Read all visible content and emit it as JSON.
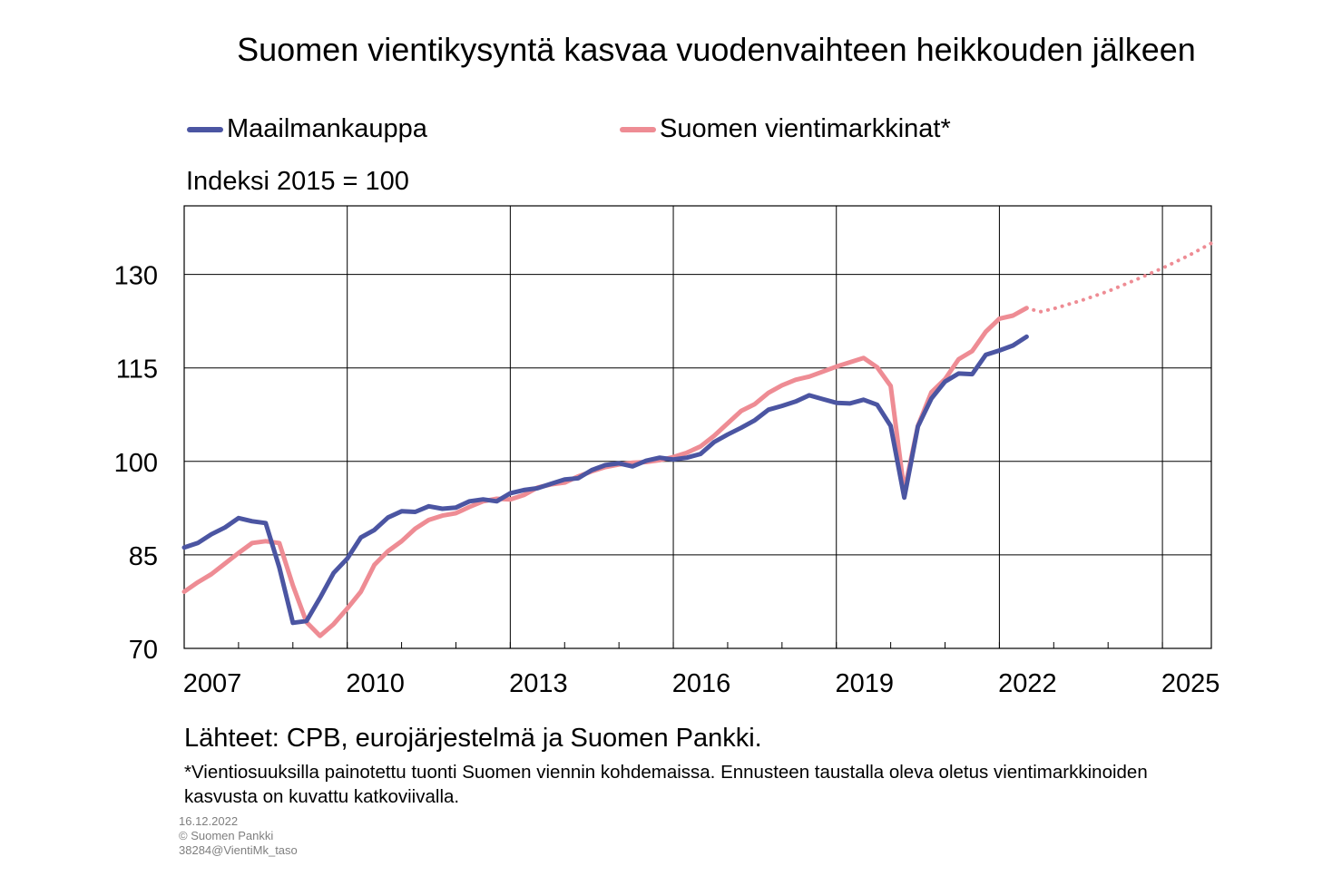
{
  "title": "Suomen vientikysyntä kasvaa vuodenvaihteen heikkouden jälkeen",
  "legend": [
    {
      "label": "Maailmankauppa",
      "color": "#4b55a2"
    },
    {
      "label": "Suomen vientimarkkinat*",
      "color": "#ee8c94"
    }
  ],
  "unit_label": "Indeksi 2015 = 100",
  "source": "Lähteet: CPB, eurojärjestelmä ja Suomen Pankki.",
  "note": "*Vientiosuuksilla painotettu tuonti Suomen viennin kohdemaissa. Ennusteen taustalla oleva oletus vientimarkkinoiden kasvusta on kuvattu katkoviivalla.",
  "meta": {
    "date": "16.12.2022",
    "copyright": "© Suomen Pankki",
    "code": "38284@VientiMk_taso"
  },
  "chart_data": {
    "type": "line",
    "title": "Suomen vientikysyntä kasvaa vuodenvaihteen heikkouden jälkeen",
    "ylabel": "Indeksi 2015 = 100",
    "xlabel": "",
    "xlim": [
      2007.0,
      2025.9
    ],
    "ylim": [
      70,
      141
    ],
    "yticks": [
      70,
      85,
      100,
      115,
      130
    ],
    "xtick_labels": [
      "2007",
      "2010",
      "2013",
      "2016",
      "2019",
      "2022",
      "2025"
    ],
    "xtick_values": [
      2007,
      2010,
      2013,
      2016,
      2019,
      2022,
      2025
    ],
    "grid": true,
    "legend_position": "top",
    "x": [
      2007.0,
      2007.25,
      2007.5,
      2007.75,
      2008.0,
      2008.25,
      2008.5,
      2008.75,
      2009.0,
      2009.25,
      2009.5,
      2009.75,
      2010.0,
      2010.25,
      2010.5,
      2010.75,
      2011.0,
      2011.25,
      2011.5,
      2011.75,
      2012.0,
      2012.25,
      2012.5,
      2012.75,
      2013.0,
      2013.25,
      2013.5,
      2013.75,
      2014.0,
      2014.25,
      2014.5,
      2014.75,
      2015.0,
      2015.25,
      2015.5,
      2015.75,
      2016.0,
      2016.25,
      2016.5,
      2016.75,
      2017.0,
      2017.25,
      2017.5,
      2017.75,
      2018.0,
      2018.25,
      2018.5,
      2018.75,
      2019.0,
      2019.25,
      2019.5,
      2019.75,
      2020.0,
      2020.25,
      2020.5,
      2020.75,
      2021.0,
      2021.25,
      2021.5,
      2021.75,
      2022.0,
      2022.25,
      2022.5
    ],
    "series": [
      {
        "name": "Maailmankauppa",
        "color": "#4b55a2",
        "style": "solid",
        "values": [
          86.2,
          86.9,
          88.3,
          89.4,
          90.9,
          90.4,
          90.1,
          83.0,
          74.1,
          74.4,
          78.1,
          82.1,
          84.4,
          87.8,
          89.0,
          91.0,
          92.0,
          91.9,
          92.8,
          92.4,
          92.6,
          93.6,
          93.9,
          93.6,
          94.9,
          95.4,
          95.7,
          96.4,
          97.1,
          97.3,
          98.6,
          99.4,
          99.7,
          99.2,
          100.1,
          100.6,
          100.3,
          100.6,
          101.2,
          103.1,
          104.3,
          105.4,
          106.6,
          108.3,
          108.9,
          109.6,
          110.6,
          110.0,
          109.4,
          109.3,
          109.9,
          109.1,
          105.7,
          94.2,
          105.6,
          110.1,
          112.8,
          114.1,
          114.0,
          117.1,
          117.8,
          118.6,
          120.0
        ]
      },
      {
        "name": "Suomen vientimarkkinat*",
        "color": "#ee8c94",
        "style": "solid",
        "values": [
          79.1,
          80.6,
          81.9,
          83.6,
          85.3,
          86.9,
          87.2,
          86.9,
          80.1,
          74.2,
          72.0,
          73.9,
          76.4,
          79.1,
          83.4,
          85.6,
          87.2,
          89.2,
          90.6,
          91.3,
          91.7,
          92.7,
          93.6,
          94.0,
          93.9,
          94.6,
          95.8,
          96.3,
          96.6,
          97.6,
          98.4,
          99.1,
          99.5,
          99.8,
          99.9,
          100.2,
          100.7,
          101.4,
          102.4,
          104.1,
          106.1,
          108.1,
          109.2,
          111.0,
          112.2,
          113.1,
          113.6,
          114.4,
          115.2,
          115.9,
          116.6,
          115.1,
          112.1,
          95.2,
          105.7,
          111.1,
          113.2,
          116.4,
          117.7,
          120.8,
          122.9,
          123.4,
          124.6
        ]
      },
      {
        "name": "Suomen vientimarkkinat* (ennuste)",
        "color": "#ee8c94",
        "style": "dotted",
        "x": [
          2022.5,
          2022.75,
          2023.0,
          2023.5,
          2024.0,
          2024.5,
          2025.0,
          2025.5,
          2025.9
        ],
        "values": [
          124.6,
          124.0,
          124.5,
          125.8,
          127.3,
          129.1,
          131.0,
          133.1,
          135.0
        ]
      }
    ]
  }
}
